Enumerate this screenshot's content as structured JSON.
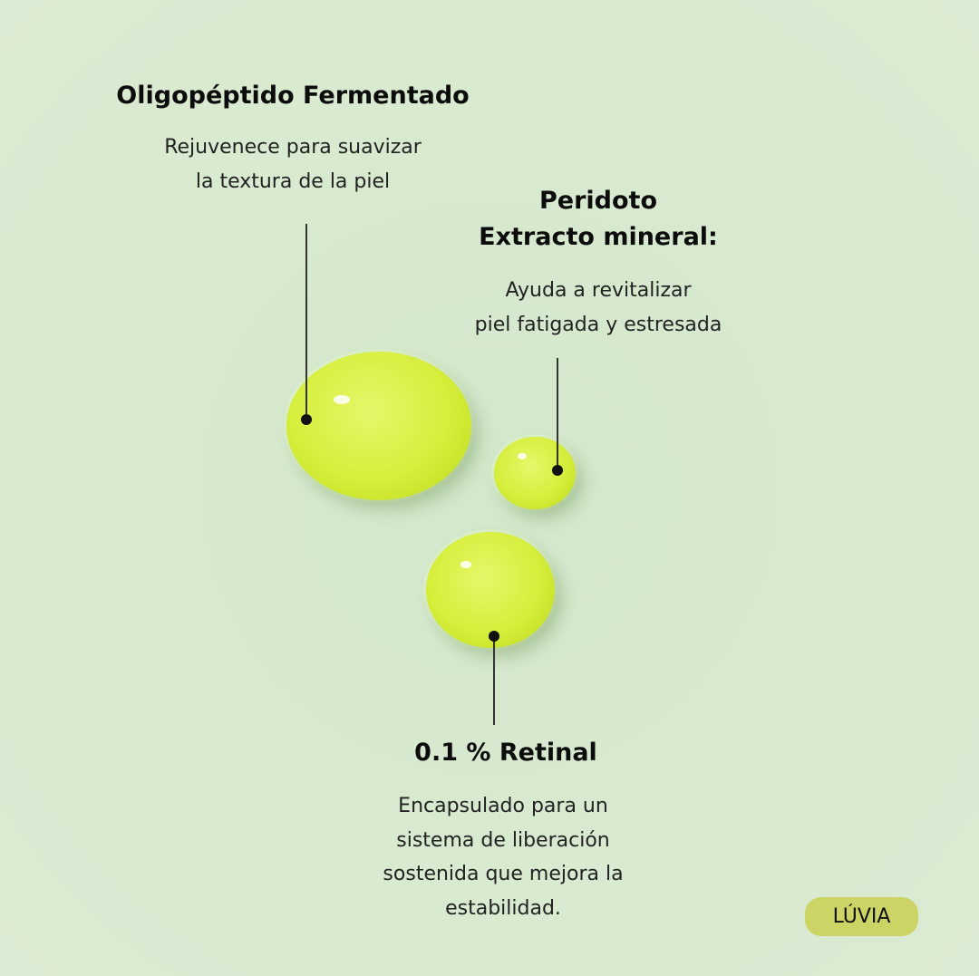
{
  "ingredients": [
    {
      "title": "Oligopéptido Fermentado",
      "lines": [
        "Rejuvenece para suavizar",
        "la textura de la piel"
      ]
    },
    {
      "title_lines": [
        "Peridoto",
        "Extracto mineral:"
      ],
      "lines": [
        "Ayuda a revitalizar",
        "piel fatigada y estresada"
      ]
    },
    {
      "title": "0.1 % Retinal",
      "lines": [
        "Encapsulado para un",
        "sistema de liberación",
        "sostenida que mejora la",
        "estabilidad."
      ]
    }
  ],
  "brand": {
    "label": "LÚVIA",
    "color": "#cbd465"
  },
  "colors": {
    "background": "#d6e9cf",
    "drop": "#d6ee3c"
  }
}
